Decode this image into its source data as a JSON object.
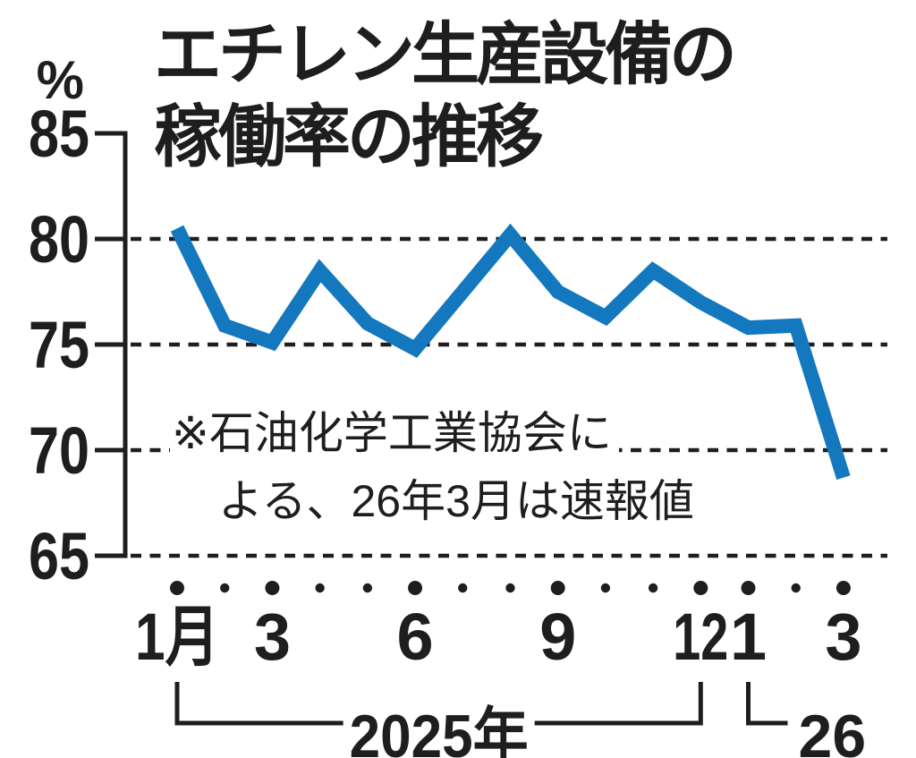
{
  "header": {
    "title_line1": "エチレン生産設備の",
    "title_line2": "稼働率の推移"
  },
  "chart_data": {
    "type": "line",
    "title": "エチレン生産設備の稼働率の推移",
    "unit": "%",
    "ylim": [
      65,
      85
    ],
    "y_ticks": [
      85,
      80,
      75,
      70,
      65
    ],
    "grid": "horizontal-dashed",
    "legend": "none",
    "x": [
      "2025-01",
      "2025-02",
      "2025-03",
      "2025-04",
      "2025-05",
      "2025-06",
      "2025-07",
      "2025-08",
      "2025-09",
      "2025-10",
      "2025-11",
      "2025-12",
      "2026-01",
      "2026-02",
      "2026-03"
    ],
    "values": [
      80.5,
      75.9,
      75.1,
      78.5,
      76.0,
      74.8,
      77.5,
      80.2,
      77.5,
      76.3,
      78.5,
      77.0,
      75.8,
      75.9,
      68.7
    ],
    "x_tick_labels": [
      {
        "index": 0,
        "label": "1月"
      },
      {
        "index": 2,
        "label": "3"
      },
      {
        "index": 5,
        "label": "6"
      },
      {
        "index": 8,
        "label": "9"
      },
      {
        "index": 11,
        "label": "12"
      },
      {
        "index": 12,
        "label": "1"
      },
      {
        "index": 14,
        "label": "3"
      }
    ],
    "year_brackets": [
      {
        "label": "2025年",
        "from_index": 0,
        "to_index": 11
      },
      {
        "label": "26",
        "from_index": 12
      }
    ],
    "note_line1": "※石油化学工業協会に",
    "note_line2": "よる、26年3月は速報値",
    "line_color": "#1478be",
    "ink_color": "#1e1e1e"
  }
}
